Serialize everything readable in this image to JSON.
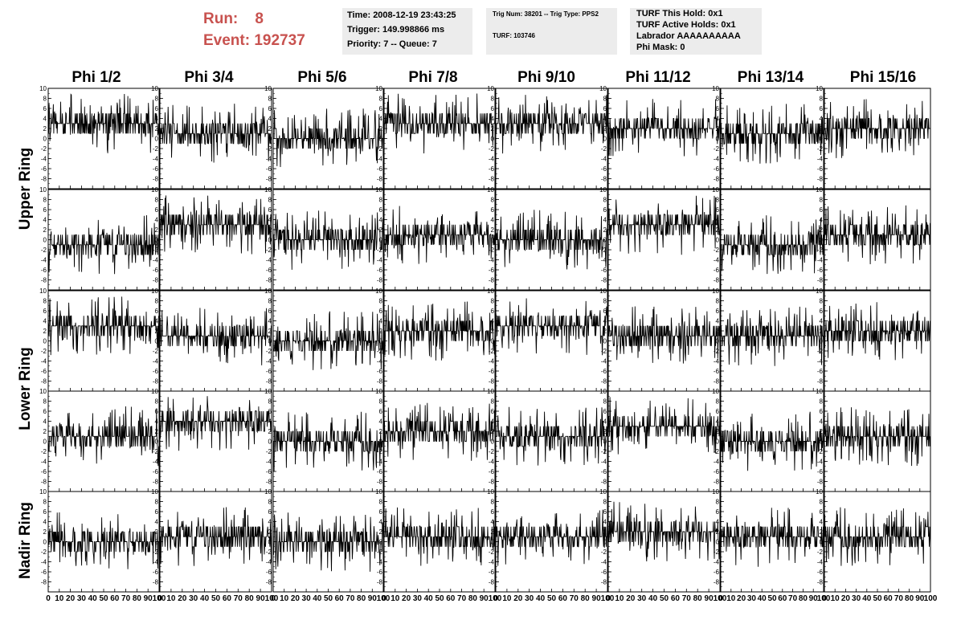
{
  "run_info": {
    "run_label": "Run:",
    "run_value": "8",
    "event_label": "Event:",
    "event_value": "192737"
  },
  "info_box_1": {
    "time": "Time: 2008-12-19 23:43:25",
    "trigger": "Trigger: 149.998866 ms",
    "priority": "Priority: 7 -- Queue: 7"
  },
  "info_box_2": {
    "trig": "Trig Num: 38201 -- Trig Type: PPS2",
    "turf": "TURF: 103746"
  },
  "info_box_3": {
    "this_hold": "TURF This Hold: 0x1",
    "active_holds": "TURF Active Holds: 0x1",
    "labrador": "Labrador AAAAAAAAAA",
    "phi_mask": "Phi Mask: 0"
  },
  "columns": [
    "Phi 1/2",
    "Phi 3/4",
    "Phi 5/6",
    "Phi 7/8",
    "Phi 9/10",
    "Phi 11/12",
    "Phi 13/14",
    "Phi 15/16"
  ],
  "rings": [
    "Upper Ring",
    "Lower Ring",
    "Nadir Ring"
  ],
  "colors": {
    "title_red": "#c8524f",
    "box_bg": "#ececec",
    "trace": "#000000"
  },
  "chart_data": {
    "type": "line",
    "panel_grid": {
      "rows": 5,
      "cols": 8
    },
    "x_ticks": [
      "0",
      "10",
      "20",
      "30",
      "40",
      "50",
      "60",
      "70",
      "80",
      "90",
      "100"
    ],
    "y_ticks": [
      "-8",
      "-6",
      "-4",
      "-2",
      "0",
      "2",
      "4",
      "6",
      "8",
      "10"
    ],
    "xlim": [
      0,
      100
    ],
    "ylim": [
      -10,
      10
    ],
    "panel_baselines": [
      [
        3,
        1,
        0,
        3,
        3,
        2,
        1,
        2
      ],
      [
        -1,
        3,
        0,
        1,
        0,
        3,
        -1,
        1
      ],
      [
        3,
        1,
        0,
        2,
        3,
        1,
        1,
        2
      ],
      [
        1,
        4,
        0,
        2,
        1,
        3,
        0,
        1
      ],
      [
        0,
        1,
        0,
        1,
        1,
        2,
        1,
        1
      ]
    ]
  }
}
